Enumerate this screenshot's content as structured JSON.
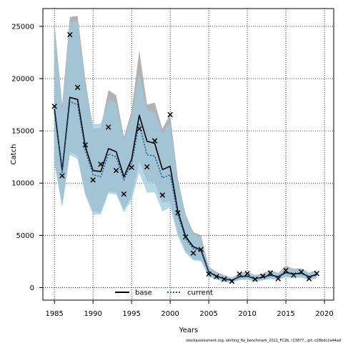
{
  "chart_data": {
    "type": "line",
    "title": "",
    "xlabel": "Years",
    "ylabel": "Catch",
    "xlim": [
      1983.5,
      2021.2
    ],
    "ylim": [
      -1200,
      26700
    ],
    "xticks": [
      1985,
      1990,
      1995,
      2000,
      2005,
      2010,
      2015,
      2020
    ],
    "yticks": [
      0,
      5000,
      10000,
      15000,
      20000,
      25000
    ],
    "grid": true,
    "legend_position": "bottom-center",
    "footer": "stockassessment.org, whiting_6a_benchmark_2021_FC2b, r13877 , git: c28bdc2a44ad",
    "years": [
      1985,
      1986,
      1987,
      1988,
      1989,
      1990,
      1991,
      1992,
      1993,
      1994,
      1995,
      1996,
      1997,
      1998,
      1999,
      2000,
      2001,
      2002,
      2003,
      2004,
      2005,
      2006,
      2007,
      2008,
      2009,
      2010,
      2011,
      2012,
      2013,
      2014,
      2015,
      2016,
      2017,
      2018,
      2019
    ],
    "series": [
      {
        "name": "base",
        "color": "#000000",
        "line_style": "solid",
        "band_color": "#aaaaaa",
        "values": [
          17100,
          11200,
          18200,
          18000,
          13500,
          11200,
          11100,
          13300,
          13000,
          10600,
          12300,
          16500,
          14000,
          13800,
          11300,
          11600,
          7300,
          4900,
          3900,
          3600,
          1500,
          1100,
          850,
          700,
          1050,
          1100,
          850,
          1000,
          1200,
          1050,
          1450,
          1300,
          1400,
          1050,
          1250
        ],
        "lower": [
          12000,
          7800,
          13000,
          12600,
          9000,
          7300,
          7200,
          9200,
          9100,
          7500,
          8700,
          12100,
          10200,
          10000,
          8100,
          8300,
          5200,
          3500,
          2700,
          2600,
          1100,
          800,
          580,
          480,
          750,
          780,
          600,
          720,
          870,
          760,
          1050,
          950,
          1000,
          760,
          900
        ],
        "upper": [
          25300,
          17500,
          25900,
          26000,
          19900,
          15200,
          15300,
          18900,
          18400,
          14400,
          16900,
          22700,
          17500,
          17700,
          15200,
          16600,
          10400,
          7000,
          5300,
          5000,
          2000,
          1500,
          1200,
          950,
          1400,
          1500,
          1200,
          1350,
          1650,
          1400,
          2100,
          1800,
          1850,
          1400,
          1700
        ]
      },
      {
        "name": "current",
        "color": "#1a5a9e",
        "line_style": "dotted",
        "band_color": "#9ccae0",
        "values": [
          16800,
          11000,
          17800,
          17500,
          13100,
          10800,
          10600,
          12800,
          12500,
          10300,
          11900,
          15700,
          12700,
          12600,
          10500,
          10800,
          6900,
          4700,
          3700,
          3500,
          1450,
          1050,
          820,
          680,
          1000,
          1060,
          830,
          970,
          1150,
          1010,
          1380,
          1250,
          1350,
          1010,
          1200
        ],
        "lower": [
          11800,
          7700,
          12700,
          12300,
          8800,
          7000,
          7000,
          9000,
          8900,
          7200,
          8400,
          11000,
          9100,
          9100,
          7300,
          7700,
          4900,
          3300,
          2600,
          2500,
          1050,
          760,
          560,
          460,
          720,
          750,
          580,
          690,
          830,
          730,
          990,
          900,
          960,
          730,
          860
        ],
        "upper": [
          24800,
          17100,
          25400,
          25500,
          19300,
          15600,
          15700,
          18000,
          17600,
          14100,
          16400,
          20500,
          16900,
          16800,
          14800,
          15800,
          10000,
          6800,
          5100,
          4800,
          1950,
          1450,
          1150,
          920,
          1360,
          1450,
          1160,
          1320,
          1600,
          1370,
          2000,
          1750,
          1800,
          1360,
          1650
        ]
      }
    ],
    "observed": {
      "marker": "x",
      "values": [
        17350,
        10700,
        24200,
        19150,
        13650,
        10300,
        11800,
        15350,
        11200,
        8950,
        11500,
        15200,
        11550,
        14050,
        8850,
        16550,
        7150,
        4850,
        3300,
        3650,
        1300,
        1050,
        800,
        600,
        1300,
        1350,
        800,
        1100,
        1400,
        850,
        1650,
        1200,
        1500,
        850,
        1350
      ]
    },
    "legend": [
      {
        "label": "base",
        "style": "solid",
        "color": "#000000"
      },
      {
        "label": "current",
        "style": "dotted",
        "color": "#1a5a9e"
      }
    ]
  }
}
